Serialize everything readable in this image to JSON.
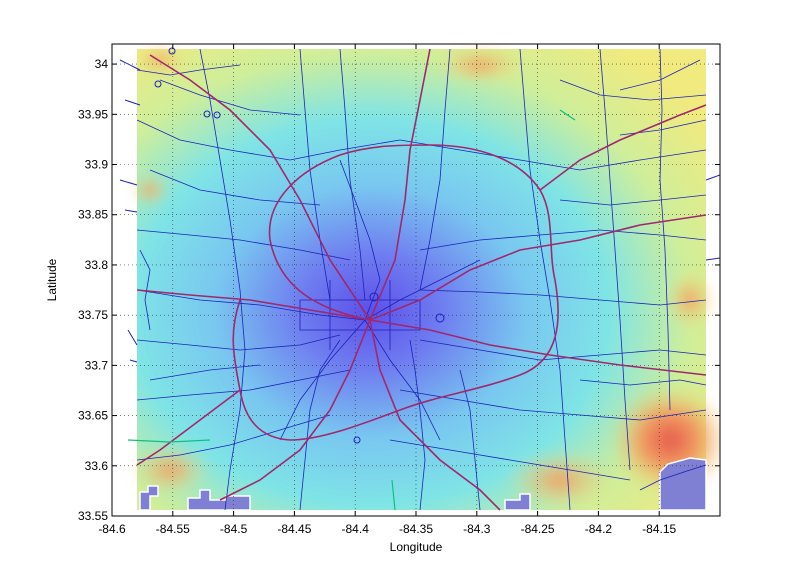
{
  "chart_data": {
    "type": "heatmap",
    "title": "",
    "xlabel": "Longitude",
    "ylabel": "Latitude",
    "xlim": [
      -84.6,
      -84.1
    ],
    "ylim": [
      33.55,
      34.02
    ],
    "x_ticks": [
      -84.6,
      -84.55,
      -84.5,
      -84.45,
      -84.4,
      -84.35,
      -84.3,
      -84.25,
      -84.2,
      -84.15
    ],
    "x_tick_labels": [
      "-84.6",
      "-84.55",
      "-84.5",
      "-84.45",
      "-84.4",
      "-84.35",
      "-84.3",
      "-84.25",
      "-84.2",
      "-84.15"
    ],
    "y_ticks": [
      34.0,
      33.95,
      33.9,
      33.85,
      33.8,
      33.75,
      33.7,
      33.65,
      33.6,
      33.55
    ],
    "y_tick_labels": [
      "34",
      "33.95",
      "33.9",
      "33.85",
      "33.8",
      "33.75",
      "33.7",
      "33.65",
      "33.6",
      "33.55"
    ],
    "grid": true,
    "heat_extent": {
      "lon": [
        -84.575,
        -84.12
      ],
      "lat": [
        33.554,
        34.015
      ]
    },
    "heat_center": {
      "lon": -84.39,
      "lat": 33.76
    },
    "colors": {
      "road_local": "#1c22b8",
      "road_highway": "#a0286e",
      "grid": "#333333",
      "heat_low": "#5d5df0",
      "heat_mid": "#5fe6e6",
      "heat_high": "#f0ec7a",
      "heat_peak": "#e85a4a"
    }
  }
}
